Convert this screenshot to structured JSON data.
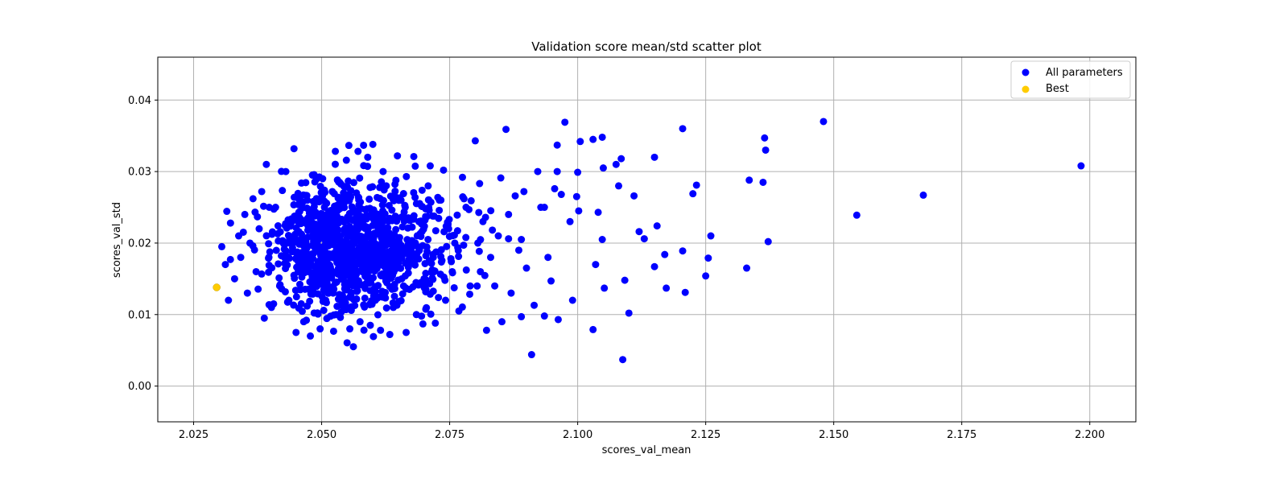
{
  "chart_data": {
    "type": "scatter",
    "title": "Validation score mean/std scatter plot",
    "xlabel": "scores_val_mean",
    "ylabel": "scores_val_std",
    "xlim": [
      2.018,
      2.209
    ],
    "ylim": [
      -0.005,
      0.046
    ],
    "xticks": [
      "2.025",
      "2.050",
      "2.075",
      "2.100",
      "2.125",
      "2.150",
      "2.175",
      "2.200"
    ],
    "yticks": [
      "0.00",
      "0.01",
      "0.02",
      "0.03",
      "0.04"
    ],
    "grid": true,
    "legend_position": "top-right",
    "series": [
      {
        "name": "All parameters",
        "color": "#0000ff",
        "points": [
          [
            2.0305,
            0.0195
          ],
          [
            2.0312,
            0.017
          ],
          [
            2.0318,
            0.012
          ],
          [
            2.0322,
            0.0228
          ],
          [
            2.033,
            0.015
          ],
          [
            2.0338,
            0.021
          ],
          [
            2.0342,
            0.018
          ],
          [
            2.035,
            0.024
          ],
          [
            2.0355,
            0.013
          ],
          [
            2.036,
            0.02
          ],
          [
            2.0366,
            0.0262
          ],
          [
            2.0372,
            0.016
          ],
          [
            2.0378,
            0.022
          ],
          [
            2.0383,
            0.0272
          ],
          [
            2.0388,
            0.0095
          ],
          [
            2.0392,
            0.031
          ],
          [
            2.0397,
            0.018
          ],
          [
            2.0402,
            0.011
          ],
          [
            2.041,
            0.025
          ],
          [
            2.0418,
            0.014
          ],
          [
            2.0425,
            0.02
          ],
          [
            2.043,
            0.03
          ],
          [
            2.0436,
            0.012
          ],
          [
            2.0442,
            0.023
          ],
          [
            2.0446,
            0.0332
          ],
          [
            2.045,
            0.0075
          ],
          [
            2.0458,
            0.017
          ],
          [
            2.0465,
            0.009
          ],
          [
            2.0472,
            0.026
          ],
          [
            2.0478,
            0.007
          ],
          [
            2.0482,
            0.0295
          ],
          [
            2.0487,
            0.015
          ],
          [
            2.0492,
            0.021
          ],
          [
            2.0497,
            0.008
          ],
          [
            2.0502,
            0.029
          ],
          [
            2.0508,
            0.012
          ],
          [
            2.0512,
            0.018
          ],
          [
            2.052,
            0.024
          ],
          [
            2.0528,
            0.01
          ],
          [
            2.0535,
            0.0285
          ],
          [
            2.0542,
            0.016
          ],
          [
            2.0548,
            0.022
          ],
          [
            2.0555,
            0.008
          ],
          [
            2.0562,
            0.0055
          ],
          [
            2.0568,
            0.027
          ],
          [
            2.0575,
            0.009
          ],
          [
            2.058,
            0.019
          ],
          [
            2.059,
            0.032
          ],
          [
            2.0595,
            0.0085
          ],
          [
            2.06,
            0.0338
          ],
          [
            2.0605,
            0.012
          ],
          [
            2.061,
            0.023
          ],
          [
            2.0615,
            0.0078
          ],
          [
            2.062,
            0.03
          ],
          [
            2.0628,
            0.016
          ],
          [
            2.0635,
            0.02
          ],
          [
            2.064,
            0.011
          ],
          [
            2.0648,
            0.0322
          ],
          [
            2.0655,
            0.026
          ],
          [
            2.066,
            0.014
          ],
          [
            2.0665,
            0.0075
          ],
          [
            2.067,
            0.019
          ],
          [
            2.068,
            0.0321
          ],
          [
            2.0685,
            0.01
          ],
          [
            2.069,
            0.023
          ],
          [
            2.07,
            0.015
          ],
          [
            2.0708,
            0.028
          ],
          [
            2.0712,
            0.0308
          ],
          [
            2.0718,
            0.018
          ],
          [
            2.0722,
            0.0088
          ],
          [
            2.073,
            0.026
          ],
          [
            2.0738,
            0.0302
          ],
          [
            2.0742,
            0.012
          ],
          [
            2.0748,
            0.022
          ],
          [
            2.0755,
            0.016
          ],
          [
            2.076,
            0.02
          ],
          [
            2.0768,
            0.0105
          ],
          [
            2.0775,
            0.0292
          ],
          [
            2.0782,
            0.025
          ],
          [
            2.079,
            0.014
          ],
          [
            2.08,
            0.0343
          ],
          [
            2.0805,
            0.02
          ],
          [
            2.081,
            0.016
          ],
          [
            2.0815,
            0.023
          ],
          [
            2.0822,
            0.0078
          ],
          [
            2.083,
            0.018
          ],
          [
            2.0838,
            0.014
          ],
          [
            2.0845,
            0.021
          ],
          [
            2.0852,
            0.009
          ],
          [
            2.086,
            0.0359
          ],
          [
            2.0865,
            0.024
          ],
          [
            2.087,
            0.013
          ],
          [
            2.0878,
            0.0266
          ],
          [
            2.0885,
            0.019
          ],
          [
            2.089,
            0.0097
          ],
          [
            2.0895,
            0.0272
          ],
          [
            2.09,
            0.0165
          ],
          [
            2.091,
            0.0044
          ],
          [
            2.0915,
            0.0113
          ],
          [
            2.0922,
            0.03
          ],
          [
            2.0928,
            0.025
          ],
          [
            2.0935,
            0.0098
          ],
          [
            2.0942,
            0.018
          ],
          [
            2.0948,
            0.0147
          ],
          [
            2.0955,
            0.0276
          ],
          [
            2.096,
            0.0337
          ],
          [
            2.0962,
            0.0093
          ],
          [
            2.0968,
            0.0268
          ],
          [
            2.0975,
            0.0369
          ],
          [
            2.0985,
            0.023
          ],
          [
            2.099,
            0.012
          ],
          [
            2.0998,
            0.0265
          ],
          [
            2.1002,
            0.0245
          ],
          [
            2.1005,
            0.0342
          ],
          [
            2.103,
            0.0345
          ],
          [
            2.1035,
            0.017
          ],
          [
            2.104,
            0.0243
          ],
          [
            2.1048,
            0.0348
          ],
          [
            2.105,
            0.0305
          ],
          [
            2.1052,
            0.0137
          ],
          [
            2.1075,
            0.031
          ],
          [
            2.1085,
            0.0318
          ],
          [
            2.1092,
            0.0148
          ],
          [
            2.11,
            0.0102
          ],
          [
            2.111,
            0.0266
          ],
          [
            2.112,
            0.0216
          ],
          [
            2.113,
            0.0206
          ],
          [
            2.115,
            0.032
          ],
          [
            2.1155,
            0.0224
          ],
          [
            2.117,
            0.0184
          ],
          [
            2.1205,
            0.036
          ],
          [
            2.121,
            0.0131
          ],
          [
            2.1225,
            0.0269
          ],
          [
            2.1232,
            0.0281
          ],
          [
            2.125,
            0.0154
          ],
          [
            2.1255,
            0.0179
          ],
          [
            2.126,
            0.021
          ],
          [
            2.1335,
            0.0288
          ],
          [
            2.133,
            0.0165
          ],
          [
            2.1365,
            0.0347
          ],
          [
            2.1367,
            0.033
          ],
          [
            2.1362,
            0.0285
          ],
          [
            2.1372,
            0.0202
          ],
          [
            2.148,
            0.037
          ],
          [
            2.1545,
            0.0239
          ],
          [
            2.1675,
            0.0267
          ],
          [
            2.1983,
            0.0308
          ],
          [
            2.089,
            0.0205
          ],
          [
            2.082,
            0.0236
          ],
          [
            2.0865,
            0.0206
          ],
          [
            2.1088,
            0.0037
          ],
          [
            2.103,
            0.0079
          ],
          [
            2.096,
            0.03
          ],
          [
            2.1,
            0.0299
          ],
          [
            2.0935,
            0.025
          ],
          [
            2.1048,
            0.0205
          ],
          [
            2.108,
            0.028
          ],
          [
            2.115,
            0.0167
          ],
          [
            2.1173,
            0.0137
          ],
          [
            2.1205,
            0.0189
          ]
        ]
      },
      {
        "name": "Best",
        "color": "#ffcc00",
        "points": [
          [
            2.0295,
            0.0138
          ]
        ]
      }
    ],
    "cluster": {
      "description_omitted": true,
      "center": [
        2.052,
        0.0195
      ],
      "spread": [
        0.011,
        0.0045
      ],
      "count": 1100
    }
  }
}
